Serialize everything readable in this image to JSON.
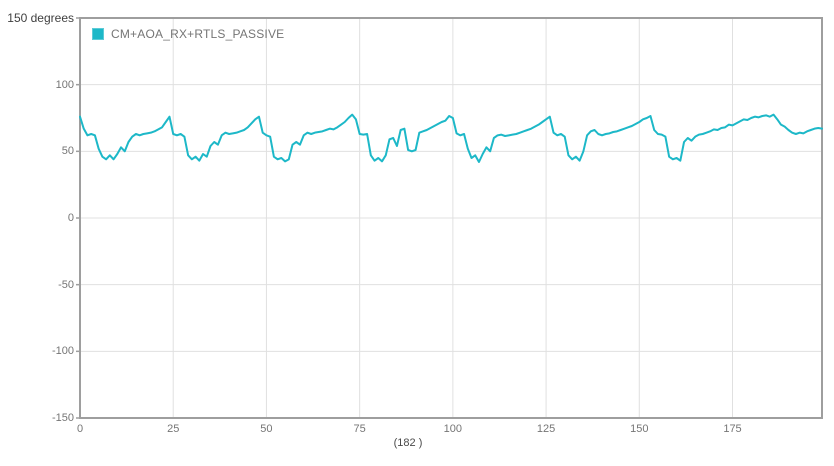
{
  "chart": {
    "legend": {
      "label": "CM+AOA_RX+RTLS_PASSIVE"
    },
    "x_axis_label": "(182 )",
    "y_axis_unit": "degrees"
  },
  "colors": {
    "series": "#1db8c8",
    "swatch_border": "#5ccbd7",
    "axis_border": "#9e9e9e",
    "gridline": "#e0e0e0",
    "tick_text": "#757575",
    "unit_text": "#3f3f3f"
  },
  "chart_data": {
    "type": "line",
    "title": "",
    "xlabel": "(182 )",
    "ylabel": "degrees",
    "xlim": [
      0,
      199
    ],
    "ylim": [
      -150,
      150
    ],
    "x_ticks": [
      0,
      25,
      50,
      75,
      100,
      125,
      150,
      175
    ],
    "y_ticks": [
      150,
      100,
      50,
      0,
      -50,
      -100,
      -150
    ],
    "y_tick_labels": [
      "150 degrees",
      "100",
      "50",
      "0",
      "-50",
      "-100",
      "-150"
    ],
    "grid": true,
    "legend_position": "top-left",
    "series": [
      {
        "name": "CM+AOA_RX+RTLS_PASSIVE",
        "color": "#1db8c8",
        "x_start": 0,
        "x_step": 1,
        "values": [
          76,
          67,
          62,
          63,
          62,
          52,
          46,
          44,
          47,
          44,
          48,
          53,
          50,
          57,
          61,
          63,
          62,
          63,
          63.5,
          64,
          65,
          66.5,
          68,
          72,
          76,
          63,
          62,
          63,
          61,
          47,
          44,
          46,
          43,
          48,
          46,
          54,
          57,
          55,
          62,
          64,
          63,
          63.5,
          64,
          65,
          66,
          68,
          71,
          74,
          76,
          64,
          62,
          61,
          46,
          44,
          45,
          42.5,
          44,
          55,
          57,
          55,
          62,
          64,
          63,
          64,
          64.5,
          65,
          66,
          67,
          66.5,
          68,
          70,
          72,
          75,
          77.5,
          74,
          63,
          62.5,
          63,
          47,
          43,
          45,
          42.5,
          47,
          59,
          60,
          54,
          66,
          67,
          51,
          50,
          51,
          64,
          65,
          66,
          67.5,
          69,
          70.5,
          72,
          73,
          76.5,
          75,
          63.5,
          62,
          63,
          52,
          45,
          47,
          42,
          48,
          53,
          50,
          60,
          62,
          62.5,
          61.5,
          62,
          62.5,
          63,
          64,
          65,
          66,
          67,
          68.5,
          70,
          72,
          74,
          76,
          64,
          62,
          63,
          61,
          47,
          44,
          46,
          43,
          50,
          62,
          65,
          66,
          63,
          62,
          63,
          63.5,
          64.5,
          65,
          66,
          67,
          68,
          69,
          70.5,
          72,
          74,
          75,
          76.5,
          66,
          63,
          62.5,
          61,
          46,
          44,
          45,
          43,
          57,
          60,
          58,
          61,
          62.5,
          63,
          64,
          65,
          66.5,
          66,
          67.5,
          68,
          70,
          69.5,
          71,
          72.5,
          74,
          73.5,
          75,
          76,
          75.5,
          76.5,
          77,
          76,
          77.5,
          74,
          70,
          68.5,
          66,
          64,
          63,
          64,
          63.5,
          65,
          66,
          67,
          67.5,
          67
        ]
      }
    ]
  }
}
